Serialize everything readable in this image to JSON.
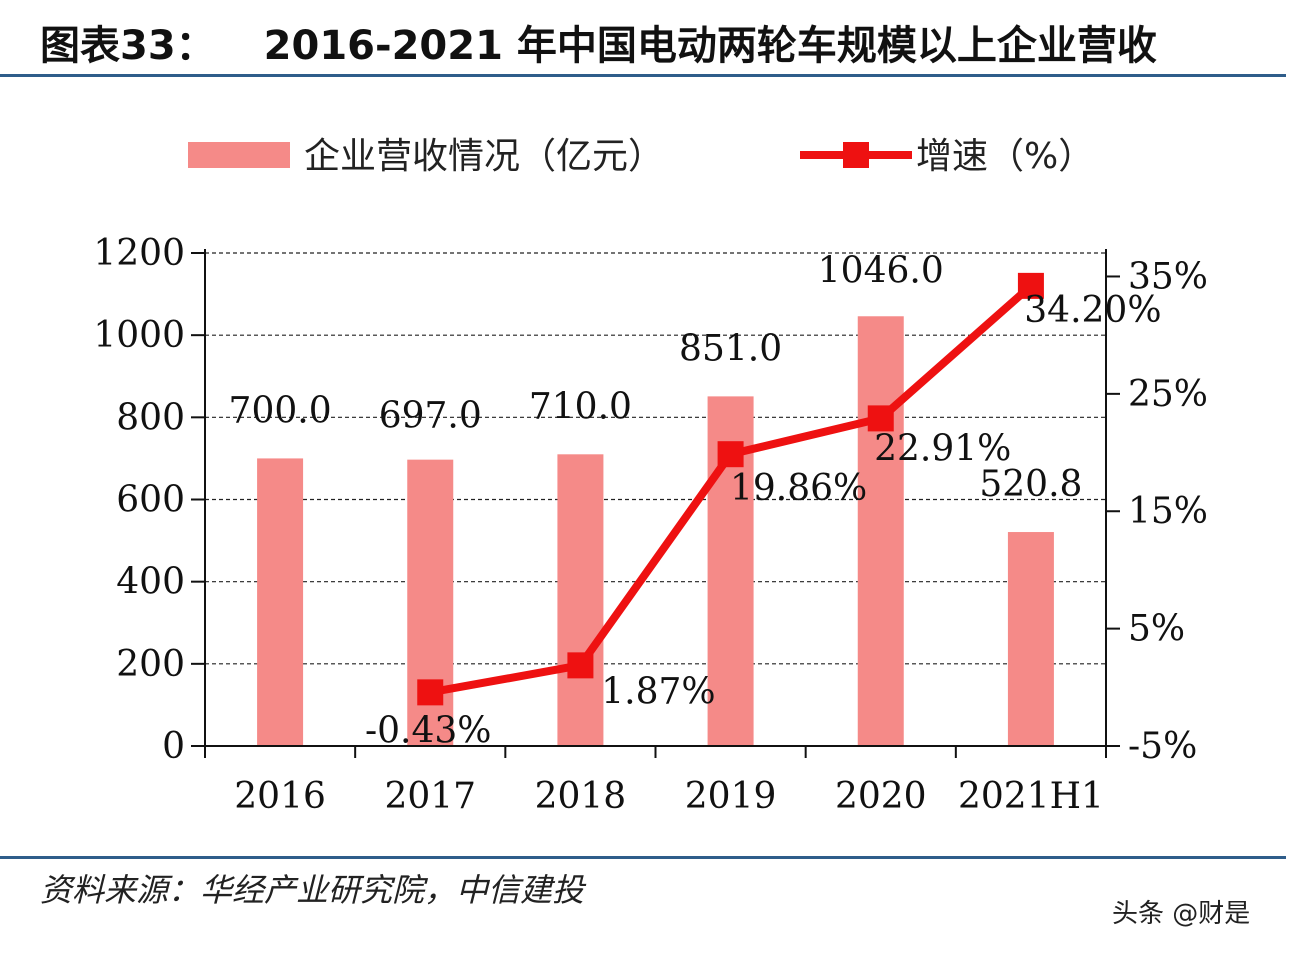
{
  "header": {
    "figure_label": "图表33：",
    "title_text": "2016-2021 年中国电动两轮车规模以上企业营收"
  },
  "source": {
    "text": "资料来源：华经产业研究院，中信建投"
  },
  "watermark": {
    "text": "头条 @财是"
  },
  "colors": {
    "bar": "#f58a88",
    "line": "#ee1111",
    "grid": "#222222",
    "rule": "#2f5d8a"
  },
  "chart_data": {
    "type": "bar+line",
    "title": "2016-2021 年中国电动两轮车规模以上企业营收",
    "categories": [
      "2016",
      "2017",
      "2018",
      "2019",
      "2020",
      "2021H1"
    ],
    "series": [
      {
        "name": "企业营收情况（亿元）",
        "type": "bar",
        "axis": "left",
        "values": [
          700.0,
          697.0,
          710.0,
          851.0,
          1046.0,
          520.8
        ],
        "labels": [
          "700.0",
          "697.0",
          "710.0",
          "851.0",
          "1046.0",
          "520.8"
        ]
      },
      {
        "name": "增速（%）",
        "type": "line",
        "axis": "right",
        "values": [
          null,
          -0.43,
          1.87,
          19.86,
          22.91,
          34.2
        ],
        "labels": [
          "",
          "-0.43%",
          "1.87%",
          "19.86%",
          "22.91%",
          "34.20%"
        ]
      }
    ],
    "left_axis": {
      "min": 0,
      "max": 1200,
      "ticks": [
        "0",
        "200",
        "400",
        "600",
        "800",
        "1000",
        "1200"
      ]
    },
    "right_axis": {
      "min": -5,
      "max": 37,
      "ticks": [
        "-5%",
        "5%",
        "15%",
        "25%",
        "35%"
      ]
    },
    "legend": {
      "position": "top",
      "bar_label": "企业营收情况（亿元）",
      "line_label": "增速（%）"
    },
    "grid": "dashed horizontal"
  }
}
